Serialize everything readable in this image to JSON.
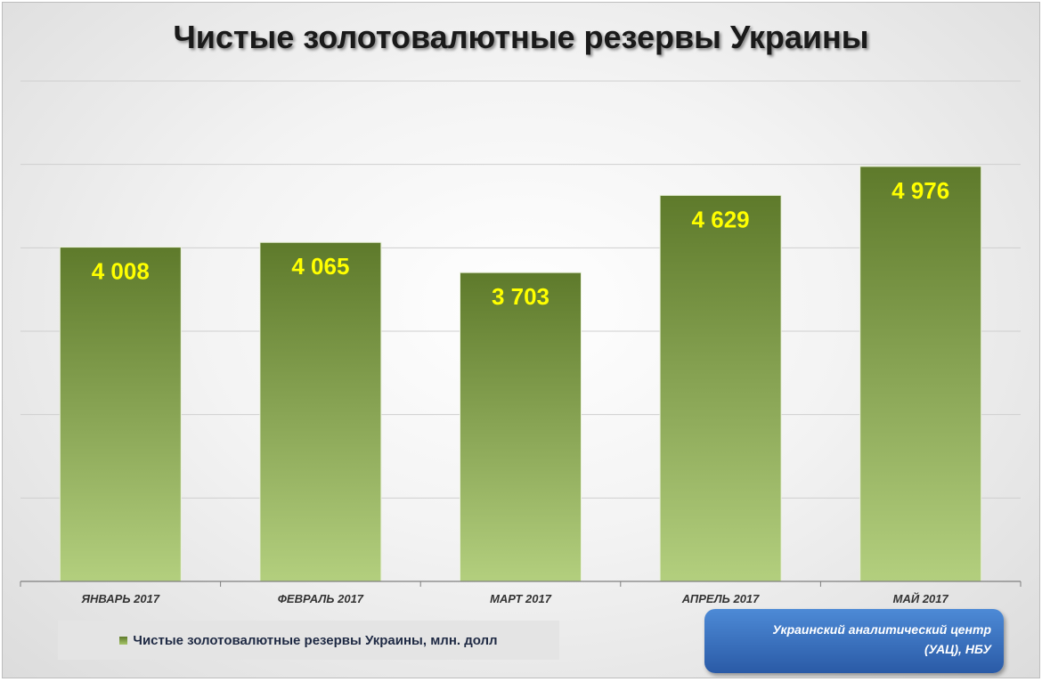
{
  "title": "Чистые золотовалютные резервы Украины",
  "legend": {
    "label": "Чистые золотовалютные резервы Украины, млн. долл"
  },
  "source_box": {
    "line1": "Украинский аналитический центр",
    "line2": "(УАЦ), НБУ"
  },
  "colors": {
    "bar_top": "#5e7a2b",
    "bar_bottom": "#b3cf7e",
    "value_label": "#ffff00",
    "source_box": "#3a70c0"
  },
  "chart_data": {
    "type": "bar",
    "categories": [
      "ЯНВАРЬ 2017",
      "ФЕВРАЛЬ 2017",
      "МАРТ 2017",
      "АПРЕЛЬ 2017",
      "МАЙ 2017"
    ],
    "series": [
      {
        "name": "Чистые золотовалютные резервы Украины, млн. долл",
        "values": [
          4008,
          4065,
          3703,
          4629,
          4976
        ]
      }
    ],
    "data_labels": [
      "4 008",
      "4 065",
      "3 703",
      "4 629",
      "4 976"
    ],
    "ylim": [
      0,
      6000
    ],
    "y_gridlines": [
      1000,
      2000,
      3000,
      4000,
      5000,
      6000
    ],
    "grid": true,
    "y_axis_labels_shown": false,
    "legend_position": "bottom-left"
  }
}
